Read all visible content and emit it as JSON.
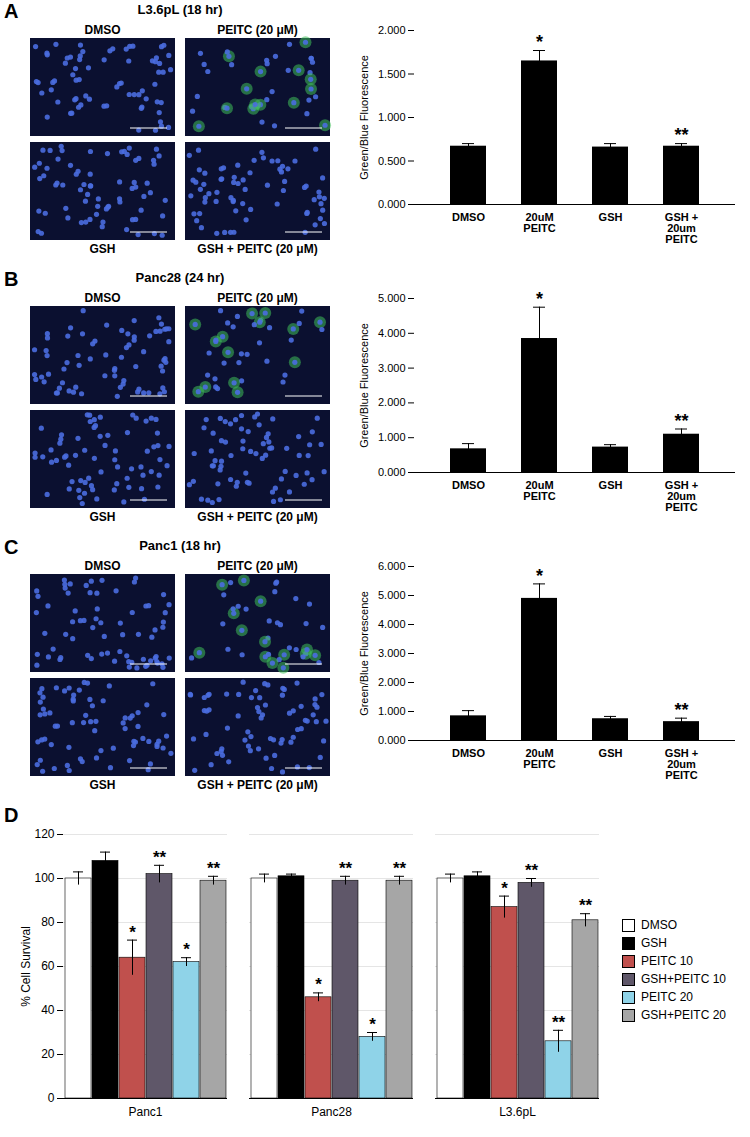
{
  "chart_data": [
    {
      "type": "bar",
      "panel": "A",
      "title": "L3.6pL (18 hr)",
      "image_labels": [
        "DMSO",
        "PEITC (20 μM)",
        "GSH",
        "GSH + PEITC (20 μM)"
      ],
      "y_label": "Green/Blue Fluorescence",
      "categories": [
        "DMSO",
        "20uM PEITC",
        "GSH",
        "GSH + 20um PEITC"
      ],
      "values": [
        0.67,
        1.65,
        0.66,
        0.67
      ],
      "errors": [
        0.03,
        0.12,
        0.04,
        0.03
      ],
      "annotations": [
        null,
        "*",
        null,
        "**"
      ],
      "color": "#000000",
      "ylim": [
        0,
        2
      ],
      "yticks": [
        {
          "value": 0,
          "label": "0.000"
        },
        {
          "value": 0.5,
          "label": "0.500"
        },
        {
          "value": 1,
          "label": "1.000"
        },
        {
          "value": 1.5,
          "label": "1.500"
        },
        {
          "value": 2,
          "label": "2.000"
        }
      ],
      "grid": false
    },
    {
      "type": "bar",
      "panel": "B",
      "title": "Panc28 (24 hr)",
      "image_labels": [
        "DMSO",
        "PEITC (20 μM)",
        "GSH",
        "GSH + PEITC (20 μM)"
      ],
      "y_label": "Green/Blue Fluorescence",
      "categories": [
        "DMSO",
        "20uM PEITC",
        "GSH",
        "GSH + 20um PEITC"
      ],
      "values": [
        0.68,
        3.85,
        0.73,
        1.1
      ],
      "errors": [
        0.15,
        0.9,
        0.07,
        0.15
      ],
      "annotations": [
        null,
        "*",
        null,
        "**"
      ],
      "color": "#000000",
      "ylim": [
        0,
        5
      ],
      "yticks": [
        {
          "value": 0,
          "label": "0.000"
        },
        {
          "value": 1,
          "label": "1.000"
        },
        {
          "value": 2,
          "label": "2.000"
        },
        {
          "value": 3,
          "label": "3.000"
        },
        {
          "value": 4,
          "label": "4.000"
        },
        {
          "value": 5,
          "label": "5.000"
        }
      ],
      "grid": false
    },
    {
      "type": "bar",
      "panel": "C",
      "title": "Panc1 (18 hr)",
      "image_labels": [
        "DMSO",
        "PEITC (20 μM)",
        "GSH",
        "GSH + PEITC (20 μM)"
      ],
      "y_label": "Green/Blue Fluorescence",
      "categories": [
        "DMSO",
        "20uM PEITC",
        "GSH",
        "GSH + 20um PEITC"
      ],
      "values": [
        0.85,
        4.9,
        0.75,
        0.65
      ],
      "errors": [
        0.18,
        0.5,
        0.08,
        0.12
      ],
      "annotations": [
        null,
        "*",
        null,
        "**"
      ],
      "color": "#000000",
      "ylim": [
        0,
        6
      ],
      "yticks": [
        {
          "value": 0,
          "label": "0.000"
        },
        {
          "value": 1,
          "label": "1.000"
        },
        {
          "value": 2,
          "label": "2.000"
        },
        {
          "value": 3,
          "label": "3.000"
        },
        {
          "value": 4,
          "label": "4.000"
        },
        {
          "value": 5,
          "label": "5.000"
        },
        {
          "value": 6,
          "label": "6.000"
        }
      ],
      "grid": false
    },
    {
      "type": "bar",
      "panel": "D",
      "y_label": "% Cell Survival",
      "categories": [
        "Panc1",
        "Panc28",
        "L3.6pL"
      ],
      "series": [
        {
          "name": "DMSO",
          "color": "#ffffff",
          "values": [
            100,
            100,
            100
          ],
          "errors": [
            3,
            2,
            2
          ],
          "annotations": [
            null,
            null,
            null
          ]
        },
        {
          "name": "GSH",
          "color": "#000000",
          "values": [
            108,
            101,
            101
          ],
          "errors": [
            4,
            1,
            2
          ],
          "annotations": [
            null,
            null,
            null
          ]
        },
        {
          "name": "PEITC 10",
          "color": "#c0504d",
          "values": [
            64,
            46,
            87
          ],
          "errors": [
            8,
            2,
            5
          ],
          "annotations": [
            "*",
            "*",
            "*"
          ]
        },
        {
          "name": "GSH+PEITC 10",
          "color": "#5f5769",
          "values": [
            102,
            99,
            98
          ],
          "errors": [
            4,
            2,
            2
          ],
          "annotations": [
            "**",
            "**",
            "**"
          ]
        },
        {
          "name": "PEITC 20",
          "color": "#8fd3e8",
          "values": [
            62,
            28,
            26
          ],
          "errors": [
            2,
            2,
            5
          ],
          "annotations": [
            "*",
            "*",
            "**"
          ]
        },
        {
          "name": "GSH+PEITC 20",
          "color": "#a6a6a6",
          "values": [
            99,
            99,
            81
          ],
          "errors": [
            2,
            2,
            3
          ],
          "annotations": [
            "**",
            "**",
            "**"
          ]
        }
      ],
      "ylim": [
        0,
        120
      ],
      "yticks": [
        0,
        20,
        40,
        60,
        80,
        100,
        120
      ],
      "grid": true,
      "legend": "right"
    }
  ]
}
